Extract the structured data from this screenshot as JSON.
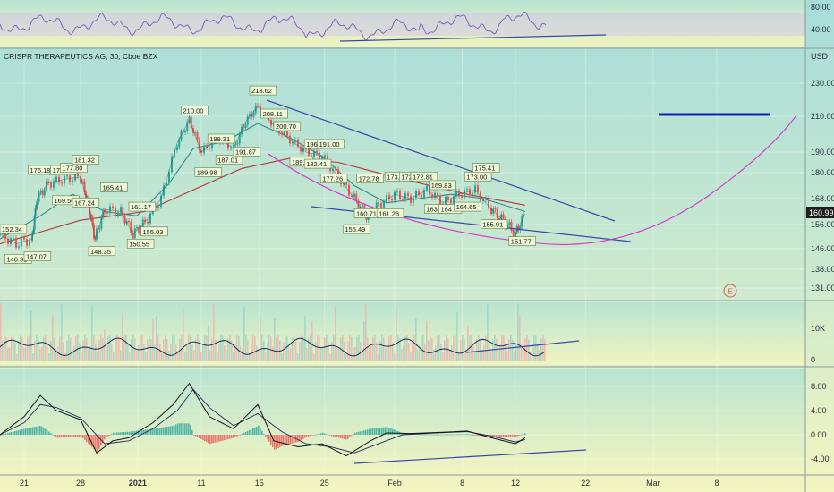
{
  "chart_data": [
    {
      "panel": "price",
      "type": "line",
      "title": "CRISPR THERAPEUTICS AG, 30, Cboe BZX",
      "currency": "USD",
      "last_price": "160.99",
      "earnings_marker": "E",
      "y_ticks": [
        "230.00",
        "210.00",
        "190.00",
        "180.00",
        "168.00",
        "156.00",
        "146.00",
        "138.00",
        "131.00"
      ],
      "x_ticks": [
        {
          "t": "21",
          "x": 0.03
        },
        {
          "t": "28",
          "x": 0.1
        },
        {
          "t": "2021",
          "x": 0.171
        },
        {
          "t": "11",
          "x": 0.25
        },
        {
          "t": "15",
          "x": 0.322
        },
        {
          "t": "25",
          "x": 0.403
        },
        {
          "t": "Feb",
          "x": 0.49
        },
        {
          "t": "8",
          "x": 0.574
        },
        {
          "t": "12",
          "x": 0.64
        },
        {
          "t": "22",
          "x": 0.727
        },
        {
          "t": "Mar",
          "x": 0.811
        },
        {
          "t": "8",
          "x": 0.89
        }
      ],
      "price_series": [
        {
          "x": 0.0,
          "y": 152
        },
        {
          "x": 0.02,
          "y": 148
        },
        {
          "x": 0.04,
          "y": 150
        },
        {
          "x": 0.046,
          "y": 168
        },
        {
          "x": 0.06,
          "y": 175
        },
        {
          "x": 0.08,
          "y": 177
        },
        {
          "x": 0.1,
          "y": 178
        },
        {
          "x": 0.11,
          "y": 165
        },
        {
          "x": 0.118,
          "y": 150
        },
        {
          "x": 0.13,
          "y": 163
        },
        {
          "x": 0.15,
          "y": 162
        },
        {
          "x": 0.165,
          "y": 152
        },
        {
          "x": 0.18,
          "y": 157
        },
        {
          "x": 0.2,
          "y": 168
        },
        {
          "x": 0.22,
          "y": 195
        },
        {
          "x": 0.235,
          "y": 208
        },
        {
          "x": 0.25,
          "y": 190
        },
        {
          "x": 0.27,
          "y": 198
        },
        {
          "x": 0.29,
          "y": 192
        },
        {
          "x": 0.305,
          "y": 207
        },
        {
          "x": 0.32,
          "y": 216
        },
        {
          "x": 0.34,
          "y": 205
        },
        {
          "x": 0.36,
          "y": 197
        },
        {
          "x": 0.38,
          "y": 190
        },
        {
          "x": 0.4,
          "y": 188
        },
        {
          "x": 0.42,
          "y": 178
        },
        {
          "x": 0.44,
          "y": 168
        },
        {
          "x": 0.455,
          "y": 160
        },
        {
          "x": 0.47,
          "y": 165
        },
        {
          "x": 0.49,
          "y": 170
        },
        {
          "x": 0.51,
          "y": 168
        },
        {
          "x": 0.53,
          "y": 172
        },
        {
          "x": 0.55,
          "y": 166
        },
        {
          "x": 0.57,
          "y": 170
        },
        {
          "x": 0.59,
          "y": 172
        },
        {
          "x": 0.61,
          "y": 163
        },
        {
          "x": 0.625,
          "y": 158
        },
        {
          "x": 0.64,
          "y": 152
        },
        {
          "x": 0.652,
          "y": 161
        }
      ],
      "ma_fast": [
        {
          "x": 0.0,
          "y": 150
        },
        {
          "x": 0.05,
          "y": 160
        },
        {
          "x": 0.09,
          "y": 170
        },
        {
          "x": 0.13,
          "y": 162
        },
        {
          "x": 0.17,
          "y": 160
        },
        {
          "x": 0.21,
          "y": 175
        },
        {
          "x": 0.24,
          "y": 192
        },
        {
          "x": 0.28,
          "y": 196
        },
        {
          "x": 0.32,
          "y": 206
        },
        {
          "x": 0.36,
          "y": 198
        },
        {
          "x": 0.4,
          "y": 188
        },
        {
          "x": 0.44,
          "y": 174
        },
        {
          "x": 0.48,
          "y": 166
        },
        {
          "x": 0.52,
          "y": 168
        },
        {
          "x": 0.56,
          "y": 170
        },
        {
          "x": 0.6,
          "y": 168
        },
        {
          "x": 0.652,
          "y": 162
        }
      ],
      "ma_slow": [
        {
          "x": 0.0,
          "y": 148
        },
        {
          "x": 0.1,
          "y": 158
        },
        {
          "x": 0.18,
          "y": 162
        },
        {
          "x": 0.24,
          "y": 172
        },
        {
          "x": 0.3,
          "y": 182
        },
        {
          "x": 0.36,
          "y": 187
        },
        {
          "x": 0.42,
          "y": 185
        },
        {
          "x": 0.5,
          "y": 177
        },
        {
          "x": 0.58,
          "y": 170
        },
        {
          "x": 0.652,
          "y": 165
        }
      ],
      "price_labels": [
        {
          "t": "152.34",
          "x": 0.0,
          "y": 153
        },
        {
          "t": "146.31",
          "x": 0.006,
          "y": 141
        },
        {
          "t": "147.07",
          "x": 0.03,
          "y": 142
        },
        {
          "t": "176.18",
          "x": 0.035,
          "y": 180
        },
        {
          "t": "176.27",
          "x": 0.063,
          "y": 180
        },
        {
          "t": "177.80",
          "x": 0.075,
          "y": 181
        },
        {
          "t": "181.32",
          "x": 0.09,
          "y": 185
        },
        {
          "t": "169.50",
          "x": 0.065,
          "y": 166
        },
        {
          "t": "167.24",
          "x": 0.09,
          "y": 165
        },
        {
          "t": "165.41",
          "x": 0.125,
          "y": 172
        },
        {
          "t": "161.17",
          "x": 0.16,
          "y": 163
        },
        {
          "t": "148.35",
          "x": 0.11,
          "y": 144
        },
        {
          "t": "155.03",
          "x": 0.175,
          "y": 152
        },
        {
          "t": "150.55",
          "x": 0.158,
          "y": 147
        },
        {
          "t": "210.00",
          "x": 0.225,
          "y": 212
        },
        {
          "t": "199.31",
          "x": 0.258,
          "y": 196
        },
        {
          "t": "187.01",
          "x": 0.268,
          "y": 185
        },
        {
          "t": "191.87",
          "x": 0.29,
          "y": 189
        },
        {
          "t": "189.98",
          "x": 0.242,
          "y": 179
        },
        {
          "t": "218.62",
          "x": 0.31,
          "y": 224
        },
        {
          "t": "208.11",
          "x": 0.324,
          "y": 210
        },
        {
          "t": "200.70",
          "x": 0.34,
          "y": 203
        },
        {
          "t": "196.",
          "x": 0.378,
          "y": 193
        },
        {
          "t": "191.00",
          "x": 0.394,
          "y": 193
        },
        {
          "t": "189.8",
          "x": 0.36,
          "y": 184
        },
        {
          "t": "182.41",
          "x": 0.378,
          "y": 183
        },
        {
          "t": "177.26",
          "x": 0.398,
          "y": 176
        },
        {
          "t": "172.78",
          "x": 0.443,
          "y": 176
        },
        {
          "t": "173.",
          "x": 0.478,
          "y": 177
        },
        {
          "t": "172",
          "x": 0.496,
          "y": 177
        },
        {
          "t": "172.81",
          "x": 0.51,
          "y": 177
        },
        {
          "t": "169.83",
          "x": 0.533,
          "y": 173
        },
        {
          "t": "173.00",
          "x": 0.577,
          "y": 177
        },
        {
          "t": "175.41",
          "x": 0.587,
          "y": 181
        },
        {
          "t": "160.71",
          "x": 0.44,
          "y": 160
        },
        {
          "t": "161.26",
          "x": 0.468,
          "y": 160
        },
        {
          "t": "155.49",
          "x": 0.426,
          "y": 153
        },
        {
          "t": "163.84",
          "x": 0.527,
          "y": 162
        },
        {
          "t": "164.0",
          "x": 0.545,
          "y": 162
        },
        {
          "t": "164.65",
          "x": 0.564,
          "y": 163
        },
        {
          "t": "155.91",
          "x": 0.597,
          "y": 155
        },
        {
          "t": "151.77",
          "x": 0.632,
          "y": 148
        }
      ]
    },
    {
      "panel": "rsi",
      "type": "line",
      "y_ticks": [
        "80.00",
        "40.00"
      ]
    },
    {
      "panel": "volume",
      "type": "bar",
      "y_ticks": [
        "10K",
        "0"
      ]
    },
    {
      "panel": "macd",
      "type": "line",
      "y_ticks": [
        "8.00",
        "4.00",
        "0.00",
        "-4.00"
      ],
      "macd_line": [
        {
          "x": 0.0,
          "y": 0
        },
        {
          "x": 0.03,
          "y": 3
        },
        {
          "x": 0.05,
          "y": 6.5
        },
        {
          "x": 0.07,
          "y": 4
        },
        {
          "x": 0.1,
          "y": 2.5
        },
        {
          "x": 0.12,
          "y": -3
        },
        {
          "x": 0.14,
          "y": -1
        },
        {
          "x": 0.16,
          "y": -0.5
        },
        {
          "x": 0.19,
          "y": 2
        },
        {
          "x": 0.215,
          "y": 5
        },
        {
          "x": 0.235,
          "y": 8.5
        },
        {
          "x": 0.26,
          "y": 3
        },
        {
          "x": 0.29,
          "y": 1
        },
        {
          "x": 0.32,
          "y": 5
        },
        {
          "x": 0.34,
          "y": -1
        },
        {
          "x": 0.37,
          "y": -2
        },
        {
          "x": 0.4,
          "y": -1.5
        },
        {
          "x": 0.43,
          "y": -3.5
        },
        {
          "x": 0.46,
          "y": -1
        },
        {
          "x": 0.48,
          "y": 0.3
        },
        {
          "x": 0.51,
          "y": 0.2
        },
        {
          "x": 0.55,
          "y": 0.4
        },
        {
          "x": 0.58,
          "y": 0.6
        },
        {
          "x": 0.61,
          "y": -0.5
        },
        {
          "x": 0.64,
          "y": -1.5
        },
        {
          "x": 0.652,
          "y": -0.5
        }
      ],
      "signal_line": [
        {
          "x": 0.0,
          "y": 0
        },
        {
          "x": 0.03,
          "y": 2
        },
        {
          "x": 0.05,
          "y": 5
        },
        {
          "x": 0.07,
          "y": 4.5
        },
        {
          "x": 0.1,
          "y": 2.8
        },
        {
          "x": 0.13,
          "y": -1.5
        },
        {
          "x": 0.16,
          "y": -1
        },
        {
          "x": 0.19,
          "y": 1
        },
        {
          "x": 0.22,
          "y": 4
        },
        {
          "x": 0.24,
          "y": 7.5
        },
        {
          "x": 0.26,
          "y": 4.5
        },
        {
          "x": 0.29,
          "y": 1.5
        },
        {
          "x": 0.32,
          "y": 3.5
        },
        {
          "x": 0.35,
          "y": 0.5
        },
        {
          "x": 0.38,
          "y": -1.5
        },
        {
          "x": 0.41,
          "y": -2
        },
        {
          "x": 0.44,
          "y": -3
        },
        {
          "x": 0.47,
          "y": -1.5
        },
        {
          "x": 0.5,
          "y": 0
        },
        {
          "x": 0.54,
          "y": 0.3
        },
        {
          "x": 0.58,
          "y": 0.5
        },
        {
          "x": 0.61,
          "y": -0.2
        },
        {
          "x": 0.64,
          "y": -1.2
        },
        {
          "x": 0.652,
          "y": -0.8
        }
      ]
    }
  ]
}
